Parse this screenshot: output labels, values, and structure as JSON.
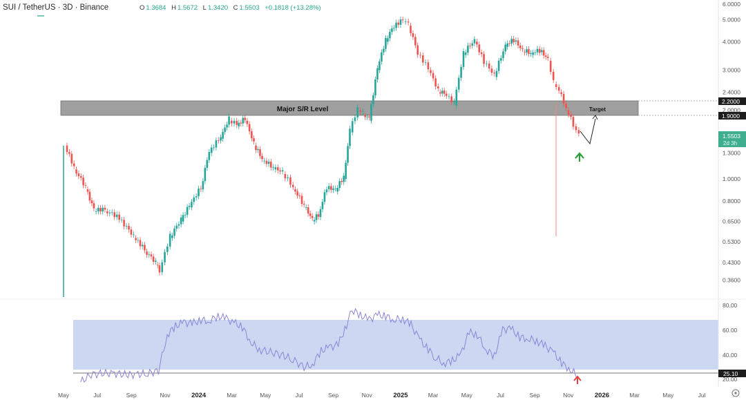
{
  "header": {
    "symbol": "SUI / TetherUS · 3D · Binance",
    "open_label": "O",
    "open": "1.3684",
    "high_label": "H",
    "high": "1.5672",
    "low_label": "L",
    "low": "1.3420",
    "close_label": "C",
    "close": "1.5503",
    "change": "+0.1818 (+13.28%)"
  },
  "annotations": {
    "zone_label": "Major S/R Level",
    "target_label": "Target"
  },
  "price_tags": {
    "upper": "2.2000",
    "lower": "1.9000",
    "current": "1.5503",
    "countdown": "2d 3h"
  },
  "rsi_tag": "25.10",
  "chart_data": {
    "type": "line",
    "price_axis": {
      "scale": "log",
      "ticks": [
        {
          "v": 6.0,
          "label": "6.0000"
        },
        {
          "v": 5.0,
          "label": "5.0000"
        },
        {
          "v": 4.0,
          "label": "4.0000"
        },
        {
          "v": 3.0,
          "label": "3.0000"
        },
        {
          "v": 2.4,
          "label": "2.4000"
        },
        {
          "v": 2.0,
          "label": "2.0000"
        },
        {
          "v": 1.3,
          "label": "1.3000"
        },
        {
          "v": 1.0,
          "label": "1.0000"
        },
        {
          "v": 0.8,
          "label": "0.8000"
        },
        {
          "v": 0.65,
          "label": "0.6500"
        },
        {
          "v": 0.53,
          "label": "0.5300"
        },
        {
          "v": 0.43,
          "label": "0.4300"
        },
        {
          "v": 0.36,
          "label": "0.3600"
        }
      ]
    },
    "rsi_axis": {
      "ticks": [
        {
          "v": 80,
          "label": "80.00"
        },
        {
          "v": 60,
          "label": "60.00"
        },
        {
          "v": 40,
          "label": "40.00"
        },
        {
          "v": 20,
          "label": "20.00"
        }
      ]
    },
    "x_ticks": [
      {
        "date": "2023-05-01",
        "label": "May",
        "bold": false
      },
      {
        "date": "2023-07-01",
        "label": "Jul",
        "bold": false
      },
      {
        "date": "2023-09-01",
        "label": "Sep",
        "bold": false
      },
      {
        "date": "2023-11-01",
        "label": "Nov",
        "bold": false
      },
      {
        "date": "2024-01-01",
        "label": "2024",
        "bold": true
      },
      {
        "date": "2024-03-01",
        "label": "Mar",
        "bold": false
      },
      {
        "date": "2024-05-01",
        "label": "May",
        "bold": false
      },
      {
        "date": "2024-07-01",
        "label": "Jul",
        "bold": false
      },
      {
        "date": "2024-09-01",
        "label": "Sep",
        "bold": false
      },
      {
        "date": "2024-11-01",
        "label": "Nov",
        "bold": false
      },
      {
        "date": "2025-01-01",
        "label": "2025",
        "bold": true
      },
      {
        "date": "2025-03-01",
        "label": "Mar",
        "bold": false
      },
      {
        "date": "2025-05-01",
        "label": "May",
        "bold": false
      },
      {
        "date": "2025-07-01",
        "label": "Jul",
        "bold": false
      },
      {
        "date": "2025-09-01",
        "label": "Sep",
        "bold": false
      },
      {
        "date": "2025-11-01",
        "label": "Nov",
        "bold": false
      },
      {
        "date": "2026-01-01",
        "label": "2026",
        "bold": true
      },
      {
        "date": "2026-03-01",
        "label": "Mar",
        "bold": false
      },
      {
        "date": "2026-05-01",
        "label": "May",
        "bold": false
      },
      {
        "date": "2026-07-01",
        "label": "Jul",
        "bold": false
      }
    ],
    "sr_zone": {
      "low": 1.9,
      "high": 2.2
    },
    "rsi_band": {
      "low": 30,
      "high": 70
    },
    "rsi_line": 25.1,
    "price_series": [
      [
        "2023-05-03",
        1.4
      ],
      [
        "2023-05-20",
        1.1
      ],
      [
        "2023-06-10",
        0.9
      ],
      [
        "2023-06-25",
        0.72
      ],
      [
        "2023-07-15",
        0.72
      ],
      [
        "2023-08-10",
        0.66
      ],
      [
        "2023-09-05",
        0.55
      ],
      [
        "2023-09-25",
        0.48
      ],
      [
        "2023-10-15",
        0.42
      ],
      [
        "2023-10-22",
        0.39
      ],
      [
        "2023-11-10",
        0.55
      ],
      [
        "2023-11-30",
        0.65
      ],
      [
        "2023-12-15",
        0.75
      ],
      [
        "2024-01-05",
        0.9
      ],
      [
        "2024-01-20",
        1.3
      ],
      [
        "2024-02-10",
        1.5
      ],
      [
        "2024-02-25",
        1.8
      ],
      [
        "2024-03-10",
        1.7
      ],
      [
        "2024-03-25",
        1.8
      ],
      [
        "2024-04-10",
        1.4
      ],
      [
        "2024-04-25",
        1.2
      ],
      [
        "2024-05-15",
        1.1
      ],
      [
        "2024-06-01",
        1.05
      ],
      [
        "2024-06-20",
        0.9
      ],
      [
        "2024-07-10",
        0.75
      ],
      [
        "2024-07-25",
        0.65
      ],
      [
        "2024-08-05",
        0.68
      ],
      [
        "2024-08-20",
        0.9
      ],
      [
        "2024-09-05",
        0.88
      ],
      [
        "2024-09-20",
        1.0
      ],
      [
        "2024-10-01",
        1.6
      ],
      [
        "2024-10-15",
        2.0
      ],
      [
        "2024-10-25",
        1.9
      ],
      [
        "2024-11-05",
        1.8
      ],
      [
        "2024-11-20",
        3.0
      ],
      [
        "2024-12-05",
        4.0
      ],
      [
        "2024-12-20",
        4.6
      ],
      [
        "2025-01-05",
        4.9
      ],
      [
        "2025-01-15",
        4.7
      ],
      [
        "2025-02-01",
        3.5
      ],
      [
        "2025-02-20",
        3.0
      ],
      [
        "2025-03-10",
        2.4
      ],
      [
        "2025-03-25",
        2.3
      ],
      [
        "2025-04-08",
        2.1
      ],
      [
        "2025-04-25",
        3.5
      ],
      [
        "2025-05-15",
        4.0
      ],
      [
        "2025-06-01",
        3.2
      ],
      [
        "2025-06-20",
        2.8
      ],
      [
        "2025-07-10",
        3.8
      ],
      [
        "2025-07-25",
        4.0
      ],
      [
        "2025-08-10",
        3.6
      ],
      [
        "2025-08-25",
        3.5
      ],
      [
        "2025-09-10",
        3.6
      ],
      [
        "2025-09-25",
        3.3
      ],
      [
        "2025-10-05",
        2.6
      ],
      [
        "2025-10-15",
        2.4
      ],
      [
        "2025-10-28",
        2.0
      ],
      [
        "2025-11-10",
        1.7
      ],
      [
        "2025-11-20",
        1.55
      ]
    ],
    "rsi_series": [
      [
        "2023-06-01",
        20
      ],
      [
        "2023-06-20",
        26
      ],
      [
        "2023-07-10",
        27
      ],
      [
        "2023-08-01",
        27
      ],
      [
        "2023-08-20",
        26
      ],
      [
        "2023-09-10",
        26
      ],
      [
        "2023-10-01",
        27
      ],
      [
        "2023-10-20",
        29
      ],
      [
        "2023-11-05",
        58
      ],
      [
        "2023-11-20",
        65
      ],
      [
        "2023-12-05",
        68
      ],
      [
        "2023-12-20",
        67
      ],
      [
        "2024-01-05",
        70
      ],
      [
        "2024-01-20",
        69
      ],
      [
        "2024-02-05",
        73
      ],
      [
        "2024-02-20",
        71
      ],
      [
        "2024-03-05",
        68
      ],
      [
        "2024-03-20",
        64
      ],
      [
        "2024-04-05",
        52
      ],
      [
        "2024-04-20",
        46
      ],
      [
        "2024-05-10",
        44
      ],
      [
        "2024-05-30",
        42
      ],
      [
        "2024-06-20",
        38
      ],
      [
        "2024-07-10",
        32
      ],
      [
        "2024-07-25",
        34
      ],
      [
        "2024-08-10",
        45
      ],
      [
        "2024-08-25",
        48
      ],
      [
        "2024-09-10",
        50
      ],
      [
        "2024-09-25",
        66
      ],
      [
        "2024-10-05",
        78
      ],
      [
        "2024-10-20",
        74
      ],
      [
        "2024-11-05",
        70
      ],
      [
        "2024-11-20",
        74
      ],
      [
        "2024-12-05",
        73
      ],
      [
        "2024-12-20",
        70
      ],
      [
        "2025-01-05",
        71
      ],
      [
        "2025-01-20",
        66
      ],
      [
        "2025-02-05",
        54
      ],
      [
        "2025-02-20",
        46
      ],
      [
        "2025-03-05",
        40
      ],
      [
        "2025-03-20",
        35
      ],
      [
        "2025-04-05",
        37
      ],
      [
        "2025-04-20",
        42
      ],
      [
        "2025-05-05",
        60
      ],
      [
        "2025-05-20",
        58
      ],
      [
        "2025-06-05",
        46
      ],
      [
        "2025-06-20",
        41
      ],
      [
        "2025-07-05",
        62
      ],
      [
        "2025-07-20",
        63
      ],
      [
        "2025-08-05",
        56
      ],
      [
        "2025-08-20",
        55
      ],
      [
        "2025-09-05",
        53
      ],
      [
        "2025-09-20",
        49
      ],
      [
        "2025-10-05",
        44
      ],
      [
        "2025-10-20",
        35
      ],
      [
        "2025-11-05",
        30
      ],
      [
        "2025-11-20",
        24
      ]
    ]
  }
}
